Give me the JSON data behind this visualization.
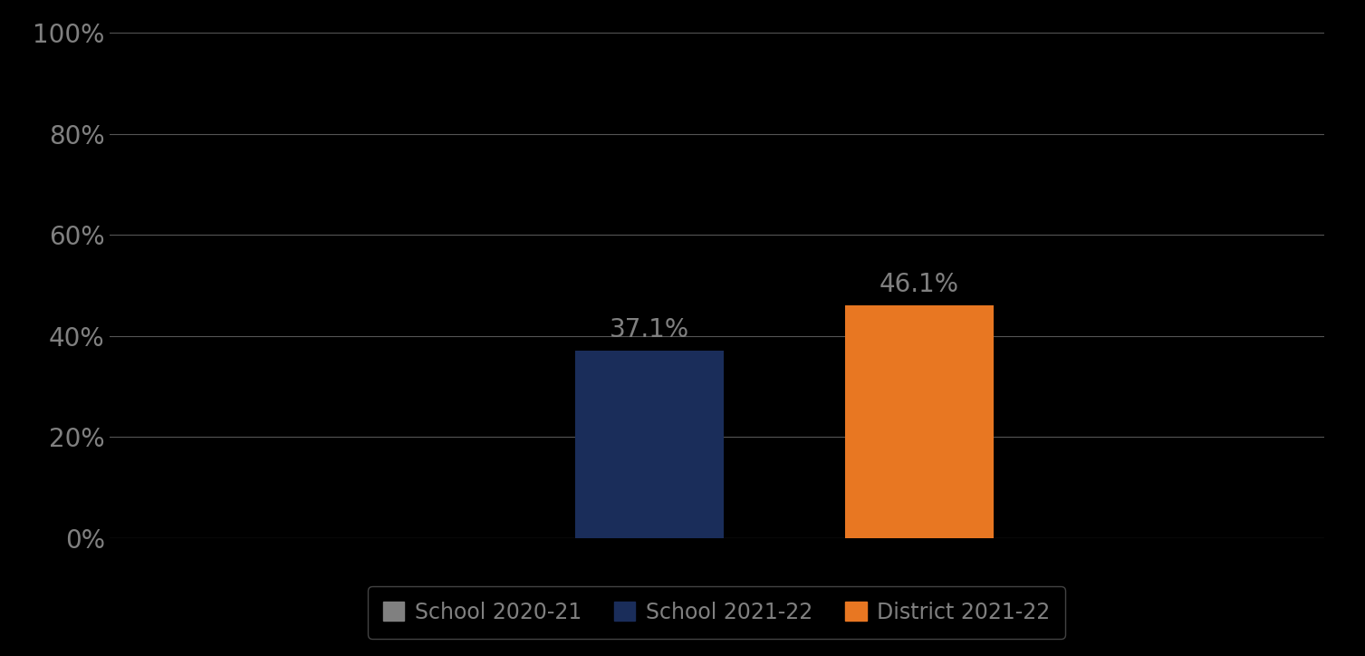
{
  "categories": [
    "School 2020-21",
    "School 2021-22",
    "District 2021-22"
  ],
  "values": [
    null,
    37.1,
    46.1
  ],
  "bar_colors": [
    "#808080",
    "#1a2d5a",
    "#e87722"
  ],
  "label_color": "#808080",
  "value_labels": [
    "",
    "37.1%",
    "46.1%"
  ],
  "ylim": [
    0,
    100
  ],
  "yticks": [
    0,
    20,
    40,
    60,
    80,
    100
  ],
  "ytick_labels": [
    "0%",
    "20%",
    "40%",
    "60%",
    "80%",
    "100%"
  ],
  "background_color": "#000000",
  "grid_color": "#555555",
  "tick_color": "#808080",
  "bar_width": 0.55,
  "value_fontsize": 20,
  "tick_fontsize": 20,
  "legend_fontsize": 17,
  "x_positions": [
    1.0,
    2.0,
    3.0
  ],
  "xlim": [
    0.0,
    4.5
  ]
}
